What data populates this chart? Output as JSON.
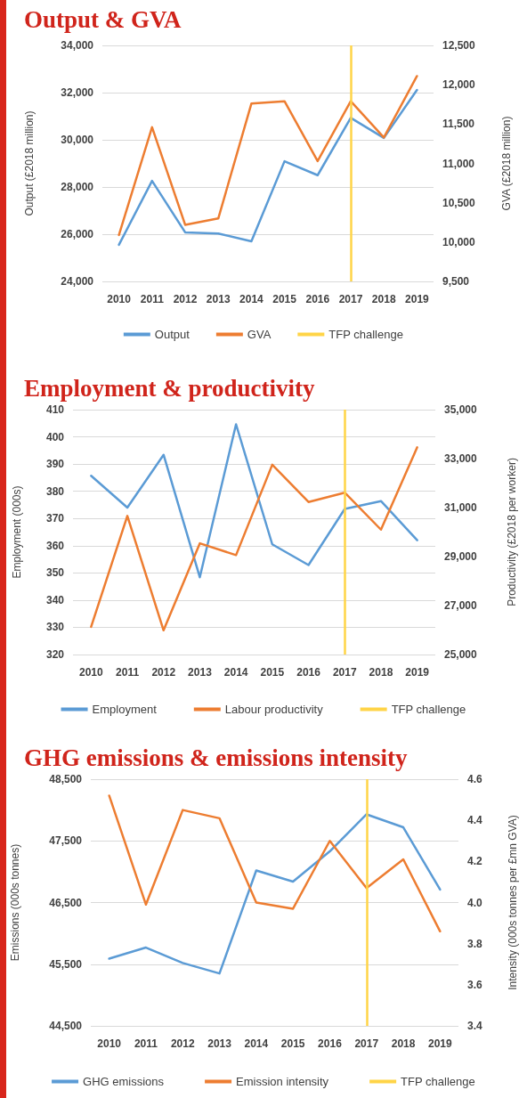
{
  "chart_data": [
    {
      "type": "line",
      "title": "Output & GVA",
      "ylabel": "Output (£2018 million)",
      "y2label": "GVA (£2018 million)",
      "categories": [
        "2010",
        "2011",
        "2012",
        "2013",
        "2014",
        "2015",
        "2016",
        "2017",
        "2018",
        "2019"
      ],
      "series": [
        {
          "name": "Output",
          "color": "#5b9bd5",
          "values": [
            25550,
            28260,
            26080,
            26030,
            25700,
            29090,
            28500,
            30930,
            30080,
            32110
          ]
        },
        {
          "name": "GVA",
          "color": "#ed7d31",
          "axis": "y2",
          "values": [
            10090,
            11460,
            10220,
            10300,
            11760,
            11790,
            11030,
            11790,
            11330,
            12110
          ]
        }
      ],
      "ylim": [
        24000,
        34000
      ],
      "yticks": [
        {
          "value": 24000,
          "label": "24,000"
        },
        {
          "value": 26000,
          "label": "26,000"
        },
        {
          "value": 28000,
          "label": "28,000"
        },
        {
          "value": 30000,
          "label": "30,000"
        },
        {
          "value": 32000,
          "label": "32,000"
        },
        {
          "value": 34000,
          "label": "34,000"
        }
      ],
      "y2lim": [
        9500,
        12500
      ],
      "y2ticks": [
        {
          "value": 9500,
          "label": "9,500"
        },
        {
          "value": 10000,
          "label": "10,000"
        },
        {
          "value": 10500,
          "label": "10,500"
        },
        {
          "value": 11000,
          "label": "11,000"
        },
        {
          "value": 11500,
          "label": "11,500"
        },
        {
          "value": 12000,
          "label": "12,000"
        },
        {
          "value": 12500,
          "label": "12,500"
        }
      ],
      "ref_lines": [
        {
          "axis": "x",
          "value": "2017",
          "label": "TFP challenge",
          "color": "#ffd447"
        }
      ],
      "grid": "y",
      "legend": "bottom",
      "marker": "none"
    },
    {
      "type": "line",
      "title": "Employment & productivity",
      "ylabel": "Employment (000s)",
      "y2label": "Productivity (£2018 per worker)",
      "categories": [
        "2010",
        "2011",
        "2012",
        "2013",
        "2014",
        "2015",
        "2016",
        "2017",
        "2018",
        "2019"
      ],
      "series": [
        {
          "name": "Employment",
          "color": "#5b9bd5",
          "values": [
            385.7,
            374,
            393.4,
            348.4,
            404.6,
            360.5,
            352.9,
            373.5,
            376.4,
            362
          ]
        },
        {
          "name": "Labour productivity",
          "color": "#ed7d31",
          "axis": "y2",
          "values": [
            26130,
            30660,
            25990,
            29540,
            29060,
            32750,
            31230,
            31610,
            30100,
            33460
          ]
        }
      ],
      "ylim": [
        320,
        410
      ],
      "yticks": [
        320,
        330,
        340,
        350,
        360,
        370,
        380,
        390,
        400,
        410
      ],
      "y2lim": [
        25000,
        35000
      ],
      "y2ticks": [
        {
          "value": 25000,
          "label": "25,000"
        },
        {
          "value": 27000,
          "label": "27,000"
        },
        {
          "value": 29000,
          "label": "29,000"
        },
        {
          "value": 31000,
          "label": "31,000"
        },
        {
          "value": 33000,
          "label": "33,000"
        },
        {
          "value": 35000,
          "label": "35,000"
        }
      ],
      "ref_lines": [
        {
          "axis": "x",
          "value": "2017",
          "label": "TFP challenge",
          "color": "#ffd447"
        }
      ],
      "grid": "y",
      "legend": "bottom",
      "marker": "none"
    },
    {
      "type": "line",
      "title": "GHG emissions & emissions intensity",
      "ylabel": "Emissions (000s tonnes)",
      "y2label": "Intensity (000s tonnes per £mn GVA)",
      "categories": [
        "2010",
        "2011",
        "2012",
        "2013",
        "2014",
        "2015",
        "2016",
        "2017",
        "2018",
        "2019"
      ],
      "series": [
        {
          "name": "GHG emissions",
          "color": "#5b9bd5",
          "values": [
            45590,
            45770,
            45520,
            45350,
            47020,
            46840,
            47330,
            47930,
            47720,
            46710
          ]
        },
        {
          "name": "Emission intensity",
          "color": "#ed7d31",
          "axis": "y2",
          "values": [
            4.52,
            3.99,
            4.45,
            4.41,
            4.0,
            3.97,
            4.3,
            4.07,
            4.21,
            3.86
          ]
        }
      ],
      "ylim": [
        44500,
        48500
      ],
      "yticks": [
        {
          "value": 44500,
          "label": "44,500"
        },
        {
          "value": 45500,
          "label": "45,500"
        },
        {
          "value": 46500,
          "label": "46,500"
        },
        {
          "value": 47500,
          "label": "47,500"
        },
        {
          "value": 48500,
          "label": "48,500"
        }
      ],
      "y2lim": [
        3.4,
        4.6
      ],
      "y2ticks": [
        3.4,
        3.6,
        3.8,
        {
          "value": 4.0,
          "label": "4.0"
        },
        4.2,
        4.4,
        4.6
      ],
      "ref_lines": [
        {
          "axis": "x",
          "value": "2017",
          "label": "TFP challenge",
          "color": "#ffd447"
        }
      ],
      "grid": "y",
      "legend": "bottom",
      "marker": "none"
    }
  ]
}
